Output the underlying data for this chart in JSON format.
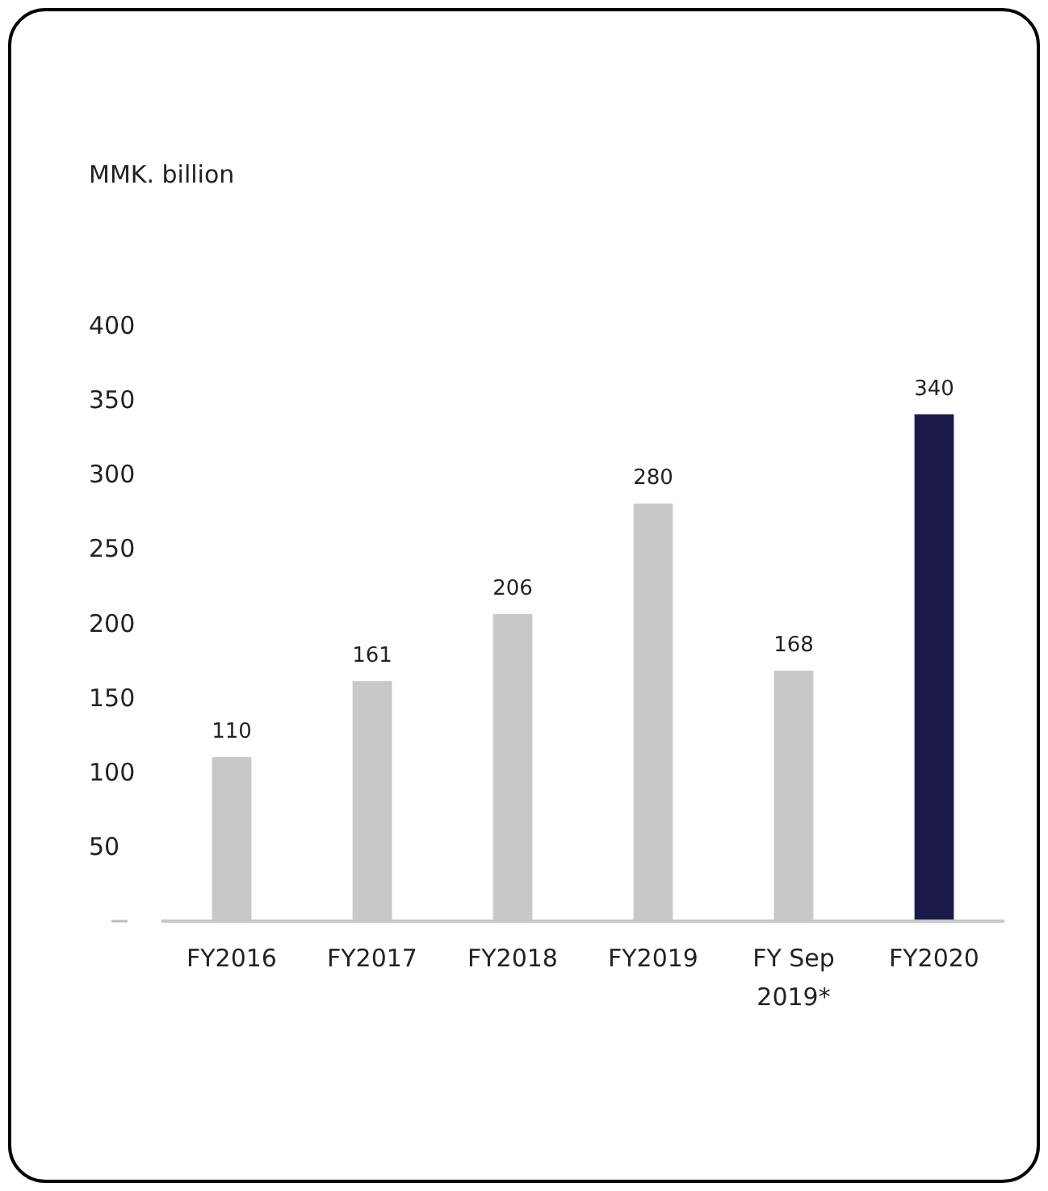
{
  "chart_data": {
    "type": "bar",
    "annotations": [
      "MMK. billion"
    ],
    "categories": [
      "FY2016",
      "FY2017",
      "FY2018",
      "FY2019",
      "FY Sep 2019*",
      "FY2020"
    ],
    "values": [
      110,
      161,
      206,
      280,
      168,
      340
    ],
    "colors": [
      "#c8c8c8",
      "#c8c8c8",
      "#c8c8c8",
      "#c8c8c8",
      "#c8c8c8",
      "#1b1a4b"
    ],
    "ylim": [
      0,
      400
    ],
    "yticks": [
      {
        "value": 0,
        "label": null
      },
      50,
      100,
      150,
      200,
      250,
      300,
      350,
      400
    ],
    "grid": false,
    "data_labels": true
  }
}
